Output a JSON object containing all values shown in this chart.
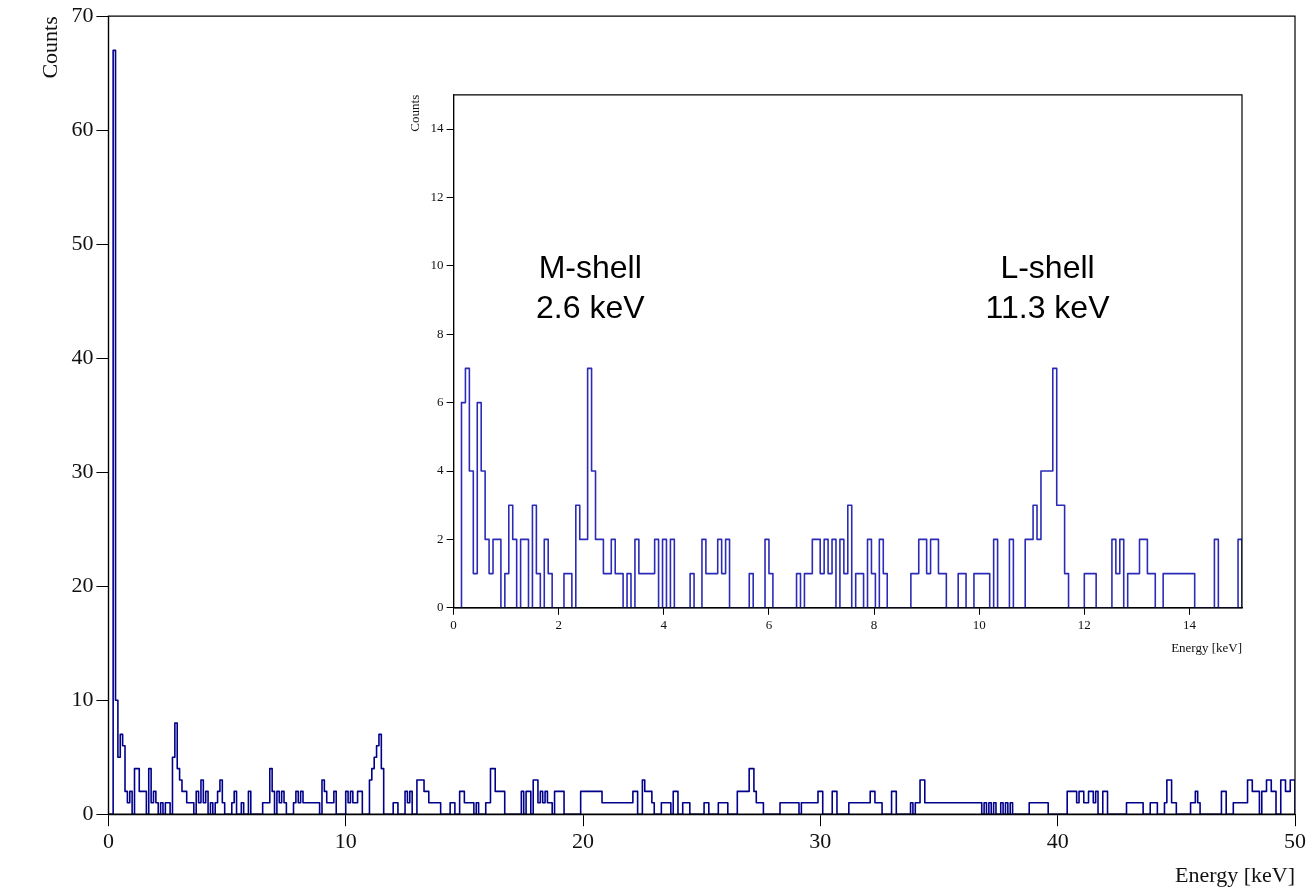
{
  "chart_data": [
    {
      "type": "histogram",
      "xlabel": "Energy [keV]",
      "ylabel": "Counts",
      "color": "#00008b",
      "xlim": [
        0,
        50
      ],
      "ylim": [
        0,
        70
      ],
      "xticks": [
        0,
        10,
        20,
        30,
        40,
        50
      ],
      "yticks": [
        0,
        10,
        20,
        30,
        40,
        50,
        60,
        70
      ],
      "bins": [
        0,
        0.1,
        0.2,
        0.3,
        0.4,
        0.5,
        0.6,
        0.7,
        0.8,
        0.9,
        1,
        1.1,
        1.2,
        1.3,
        1.4,
        1.5,
        1.6,
        1.7,
        1.8,
        1.9,
        2,
        2.1,
        2.2,
        2.3,
        2.4,
        2.5,
        2.6,
        2.7,
        2.8,
        2.9,
        3,
        3.1,
        3.2,
        3.3,
        3.4,
        3.5,
        3.6,
        3.7,
        3.8,
        3.9,
        4,
        4.1,
        4.2,
        4.3,
        4.4,
        4.5,
        4.6,
        4.7,
        4.8,
        4.9,
        5,
        5.1,
        5.2,
        5.3,
        5.4,
        5.5,
        5.6,
        5.7,
        5.8,
        5.9,
        6,
        6.1,
        6.2,
        6.3,
        6.4,
        6.5,
        6.6,
        6.7,
        6.8,
        6.9,
        7,
        7.1,
        7.2,
        7.3,
        7.4,
        7.5,
        7.6,
        7.7,
        7.8,
        7.9,
        8,
        8.1,
        8.2,
        8.3,
        8.4,
        8.5,
        8.6,
        8.7,
        8.8,
        8.9,
        9,
        9.1,
        9.2,
        9.3,
        9.4,
        9.5,
        9.6,
        9.7,
        9.8,
        9.9,
        10,
        10.1,
        10.2,
        10.3,
        10.4,
        10.5,
        10.6,
        10.7,
        10.8,
        10.9,
        11,
        11.1,
        11.2,
        11.3,
        11.4,
        11.5,
        11.6,
        11.7,
        11.8,
        11.9,
        12,
        12.1,
        12.2,
        12.3,
        12.4,
        12.5,
        12.6,
        12.7,
        12.8,
        12.9,
        13,
        13.1,
        13.2,
        13.3,
        13.4,
        13.5,
        13.6,
        13.7,
        13.8,
        13.9,
        14,
        14.1,
        14.2,
        14.3,
        14.4,
        14.5,
        14.6,
        14.7,
        14.8,
        14.9,
        15,
        15.1,
        15.2,
        15.3,
        15.4,
        15.5,
        15.6,
        15.7,
        15.8,
        15.9,
        16,
        16.1,
        16.2,
        16.3,
        16.4,
        16.5,
        16.6,
        16.7,
        16.8,
        16.9,
        17,
        17.1,
        17.2,
        17.3,
        17.4,
        17.5,
        17.6,
        17.7,
        17.8,
        17.9,
        18,
        18.1,
        18.2,
        18.3,
        18.4,
        18.5,
        18.6,
        18.7,
        18.8,
        18.9,
        19,
        19.1,
        19.2,
        19.3,
        19.4,
        19.5,
        19.6,
        19.7,
        19.8,
        19.9,
        20,
        20.1,
        20.2,
        20.3,
        20.4,
        20.5,
        20.6,
        20.7,
        20.8,
        20.9,
        21,
        21.1,
        21.2,
        21.3,
        21.4,
        21.5,
        21.6,
        21.7,
        21.8,
        21.9,
        22,
        22.1,
        22.2,
        22.3,
        22.4,
        22.5,
        22.6,
        22.7,
        22.8,
        22.9,
        23,
        23.1,
        23.2,
        23.3,
        23.4,
        23.5,
        23.6,
        23.7,
        23.8,
        23.9,
        24,
        24.1,
        24.2,
        24.3,
        24.4,
        24.5,
        24.6,
        24.7,
        24.8,
        24.9,
        25,
        25.1,
        25.2,
        25.3,
        25.4,
        25.5,
        25.6,
        25.7,
        25.8,
        25.9,
        26,
        26.1,
        26.2,
        26.3,
        26.4,
        26.5,
        26.6,
        26.7,
        26.8,
        26.9,
        27,
        27.1,
        27.2,
        27.3,
        27.4,
        27.5,
        27.6,
        27.7,
        27.8,
        27.9,
        28,
        28.1,
        28.2,
        28.3,
        28.4,
        28.5,
        28.6,
        28.7,
        28.8,
        28.9,
        29,
        29.1,
        29.2,
        29.3,
        29.4,
        29.5,
        29.6,
        29.7,
        29.8,
        29.9,
        30,
        30.1,
        30.2,
        30.3,
        30.4,
        30.5,
        30.6,
        30.7,
        30.8,
        30.9,
        31,
        31.1,
        31.2,
        31.3,
        31.4,
        31.5,
        31.6,
        31.7,
        31.8,
        31.9,
        32,
        32.1,
        32.2,
        32.3,
        32.4,
        32.5,
        32.6,
        32.7,
        32.8,
        32.9,
        33,
        33.1,
        33.2,
        33.3,
        33.4,
        33.5,
        33.6,
        33.7,
        33.8,
        33.9,
        34,
        34.1,
        34.2,
        34.3,
        34.4,
        34.5,
        34.6,
        34.7,
        34.8,
        34.9,
        35,
        35.1,
        35.2,
        35.3,
        35.4,
        35.5,
        35.6,
        35.7,
        35.8,
        35.9,
        36,
        36.1,
        36.2,
        36.3,
        36.4,
        36.5,
        36.6,
        36.7,
        36.8,
        36.9,
        37,
        37.1,
        37.2,
        37.3,
        37.4,
        37.5,
        37.6,
        37.7,
        37.8,
        37.9,
        38,
        38.1,
        38.2,
        38.3,
        38.4,
        38.5,
        38.6,
        38.7,
        38.8,
        38.9,
        39,
        39.1,
        39.2,
        39.3,
        39.4,
        39.5,
        39.6,
        39.7,
        39.8,
        39.9,
        40,
        40.1,
        40.2,
        40.3,
        40.4,
        40.5,
        40.6,
        40.7,
        40.8,
        40.9,
        41,
        41.1,
        41.2,
        41.3,
        41.4,
        41.5,
        41.6,
        41.7,
        41.8,
        41.9,
        42,
        42.1,
        42.2,
        42.3,
        42.4,
        42.5,
        42.6,
        42.7,
        42.8,
        42.9,
        43,
        43.1,
        43.2,
        43.3,
        43.4,
        43.5,
        43.6,
        43.7,
        43.8,
        43.9,
        44,
        44.1,
        44.2,
        44.3,
        44.4,
        44.5,
        44.6,
        44.7,
        44.8,
        44.9,
        45,
        45.1,
        45.2,
        45.3,
        45.4,
        45.5,
        45.6,
        45.7,
        45.8,
        45.9,
        46,
        46.1,
        46.2,
        46.3,
        46.4,
        46.5,
        46.6,
        46.7,
        46.8,
        46.9,
        47,
        47.1,
        47.2,
        47.3,
        47.4,
        47.5,
        47.6,
        47.7,
        47.8,
        47.9,
        48,
        48.1,
        48.2,
        48.3,
        48.4,
        48.5,
        48.6,
        48.7,
        48.8,
        48.9,
        49,
        49.1,
        49.2,
        49.3,
        49.4,
        49.5,
        49.6,
        49.7,
        49.8,
        49.9,
        50
      ],
      "values": [
        0,
        0,
        67,
        10,
        5,
        7,
        6,
        2,
        1,
        2,
        0,
        4,
        4,
        2,
        2,
        2,
        0,
        4,
        1,
        2,
        1,
        0,
        1,
        0,
        1,
        1,
        0,
        5,
        8,
        4,
        3,
        2,
        2,
        1,
        1,
        1,
        0,
        2,
        1,
        3,
        1,
        2,
        0,
        1,
        0,
        1,
        2,
        3,
        1,
        0,
        0,
        0,
        1,
        2,
        0,
        0,
        1,
        0,
        0,
        2,
        0,
        0,
        0,
        0,
        0,
        1,
        1,
        1,
        4,
        2,
        0,
        2,
        1,
        2,
        1,
        0,
        0,
        0,
        1,
        2,
        1,
        2,
        1,
        1,
        1,
        1,
        1,
        1,
        1,
        0,
        3,
        2,
        1,
        1,
        1,
        2,
        0,
        0,
        0,
        0,
        2,
        1,
        2,
        1,
        1,
        2,
        2,
        0,
        0,
        0,
        3,
        4,
        5,
        6,
        7,
        4,
        0,
        0,
        0,
        0,
        1,
        1,
        0,
        0,
        0,
        2,
        1,
        2,
        0,
        0,
        3,
        3,
        3,
        2,
        2,
        1,
        1,
        1,
        1,
        1,
        0,
        0,
        0,
        0,
        1,
        1,
        0,
        0,
        2,
        2,
        1,
        1,
        1,
        1,
        0,
        1,
        0,
        0,
        0,
        1,
        1,
        4,
        4,
        2,
        2,
        2,
        2,
        0,
        0,
        0,
        0,
        0,
        0,
        0,
        2,
        0,
        2,
        2,
        0,
        3,
        3,
        1,
        2,
        1,
        2,
        1,
        1,
        0,
        2,
        2,
        2,
        2,
        0,
        0,
        0,
        0,
        0,
        0,
        0,
        2,
        2,
        2,
        2,
        2,
        2,
        2,
        2,
        2,
        1,
        1,
        1,
        1,
        1,
        1,
        1,
        1,
        1,
        1,
        1,
        1,
        1,
        2,
        2,
        0,
        0,
        3,
        2,
        2,
        2,
        1,
        0,
        0,
        0,
        1,
        1,
        1,
        1,
        0,
        2,
        2,
        0,
        0,
        1,
        1,
        1,
        0,
        0,
        0,
        0,
        0,
        0,
        1,
        1,
        0,
        0,
        0,
        0,
        1,
        1,
        1,
        1,
        0,
        0,
        0,
        0,
        2,
        2,
        2,
        2,
        2,
        4,
        4,
        2,
        1,
        1,
        1,
        0,
        0,
        0,
        0,
        0,
        0,
        0,
        1,
        1,
        1,
        1,
        1,
        1,
        1,
        1,
        0,
        1,
        1,
        1,
        1,
        1,
        1,
        1,
        2,
        2,
        0,
        0,
        0,
        0,
        2,
        2,
        0,
        0,
        0,
        0,
        0,
        1,
        1,
        1,
        1,
        1,
        1,
        1,
        1,
        1,
        2,
        2,
        1,
        1,
        1,
        0,
        0,
        0,
        0,
        2,
        2,
        0,
        0,
        0,
        0,
        0,
        0,
        1,
        0,
        1,
        1,
        3,
        3,
        1,
        1,
        1,
        1,
        1,
        1,
        1,
        1,
        1,
        1,
        1,
        1,
        1,
        1,
        1,
        1,
        1,
        1,
        1,
        1,
        1,
        1,
        1,
        1,
        0,
        1,
        0,
        1,
        0,
        1,
        0,
        0,
        1,
        0,
        1,
        0,
        1,
        0,
        0,
        0,
        0,
        0,
        0,
        0,
        1,
        1,
        1,
        1,
        1,
        1,
        1,
        1,
        0,
        0,
        0,
        0,
        0,
        0,
        0,
        0,
        2,
        2,
        2,
        2,
        1,
        2,
        2,
        1,
        1,
        2,
        2,
        1,
        2,
        0,
        0,
        2,
        2,
        0,
        0,
        0,
        0,
        0,
        0,
        0,
        0,
        1,
        1,
        1,
        1,
        1,
        1,
        1,
        0,
        0,
        0,
        1,
        1,
        1,
        0,
        0,
        0,
        1,
        3,
        3,
        1,
        1,
        0,
        0,
        0,
        0,
        0,
        0,
        1,
        1,
        2,
        1,
        0,
        0,
        0,
        0,
        0,
        0,
        0,
        0,
        0,
        2,
        2,
        0,
        0,
        0,
        1,
        1,
        1,
        1,
        1,
        1,
        3,
        3,
        2,
        2,
        2,
        0,
        2,
        2,
        3,
        3,
        2,
        2,
        0,
        0,
        3,
        3,
        2,
        2,
        3,
        3
      ]
    },
    {
      "type": "histogram",
      "xlabel": "Energy [keV]",
      "ylabel": "Counts",
      "color": "#2b2bb8",
      "xlim": [
        0,
        15
      ],
      "ylim": [
        0,
        15
      ],
      "xticks": [
        0,
        2,
        4,
        6,
        8,
        10,
        12,
        14
      ],
      "yticks": [
        0,
        2,
        4,
        6,
        8,
        10,
        12,
        14
      ],
      "annotations": [
        {
          "text": "M-shell\n2.6 keV",
          "x": 2.6,
          "y": 7
        },
        {
          "text": "L-shell\n11.3 keV",
          "x": 11.3,
          "y": 7
        }
      ],
      "bins": [
        0.15,
        0.225,
        0.3,
        0.375,
        0.45,
        0.525,
        0.6,
        0.675,
        0.75,
        0.825,
        0.9,
        0.975,
        1.05,
        1.125,
        1.2,
        1.275,
        1.35,
        1.425,
        1.5,
        1.575,
        1.65,
        1.725,
        1.8,
        1.875,
        1.95,
        2.025,
        2.1,
        2.175,
        2.25,
        2.325,
        2.4,
        2.475,
        2.55,
        2.625,
        2.7,
        2.775,
        2.85,
        2.925,
        3,
        3.075,
        3.15,
        3.225,
        3.3,
        3.375,
        3.45,
        3.525,
        3.6,
        3.675,
        3.75,
        3.825,
        3.9,
        3.975,
        4.05,
        4.125,
        4.2,
        4.275,
        4.35,
        4.425,
        4.5,
        4.575,
        4.65,
        4.725,
        4.8,
        4.875,
        4.95,
        5.025,
        5.1,
        5.175,
        5.25,
        5.325,
        5.4,
        5.475,
        5.55,
        5.625,
        5.7,
        5.775,
        5.85,
        5.925,
        6,
        6.075,
        6.15,
        6.225,
        6.3,
        6.375,
        6.45,
        6.525,
        6.6,
        6.675,
        6.75,
        6.825,
        6.9,
        6.975,
        7.05,
        7.125,
        7.2,
        7.275,
        7.35,
        7.425,
        7.5,
        7.575,
        7.65,
        7.725,
        7.8,
        7.875,
        7.95,
        8.025,
        8.1,
        8.175,
        8.25,
        8.325,
        8.4,
        8.475,
        8.55,
        8.625,
        8.7,
        8.775,
        8.85,
        8.925,
        9,
        9.075,
        9.15,
        9.225,
        9.3,
        9.375,
        9.45,
        9.525,
        9.6,
        9.675,
        9.75,
        9.825,
        9.9,
        9.975,
        10.05,
        10.125,
        10.2,
        10.275,
        10.35,
        10.425,
        10.5,
        10.575,
        10.65,
        10.725,
        10.8,
        10.875,
        10.95,
        11.025,
        11.1,
        11.175,
        11.25,
        11.325,
        11.4,
        11.475,
        11.55,
        11.625,
        11.7,
        11.775,
        11.85,
        11.925,
        12,
        12.075,
        12.15,
        12.225,
        12.3,
        12.375,
        12.45,
        12.525,
        12.6,
        12.675,
        12.75,
        12.825,
        12.9,
        12.975,
        13.05,
        13.125,
        13.2,
        13.275,
        13.35,
        13.425,
        13.5,
        13.575,
        13.65,
        13.725,
        13.8,
        13.875,
        13.95,
        14.025,
        14.1,
        14.175,
        14.25,
        14.325,
        14.4,
        14.475,
        14.55,
        14.625,
        14.7,
        14.775,
        14.85,
        14.925,
        15
      ],
      "values": [
        6,
        7,
        4,
        1,
        6,
        4,
        2,
        1,
        2,
        2,
        0,
        1,
        3,
        2,
        0,
        2,
        2,
        0,
        3,
        1,
        0,
        2,
        1,
        0,
        0,
        0,
        1,
        1,
        0,
        3,
        2,
        2,
        7,
        4,
        2,
        2,
        1,
        1,
        2,
        1,
        1,
        0,
        1,
        0,
        2,
        1,
        1,
        1,
        1,
        2,
        0,
        2,
        0,
        2,
        0,
        0,
        0,
        0,
        1,
        0,
        0,
        2,
        1,
        1,
        1,
        2,
        1,
        2,
        0,
        0,
        0,
        0,
        0,
        1,
        0,
        0,
        0,
        2,
        1,
        0,
        0,
        0,
        0,
        0,
        0,
        1,
        0,
        1,
        1,
        2,
        2,
        1,
        2,
        1,
        2,
        0,
        2,
        1,
        3,
        0,
        1,
        1,
        0,
        2,
        1,
        0,
        2,
        1,
        0,
        0,
        0,
        0,
        0,
        0,
        1,
        1,
        2,
        2,
        1,
        2,
        2,
        1,
        1,
        0,
        0,
        0,
        1,
        1,
        0,
        0,
        1,
        1,
        1,
        1,
        0,
        2,
        0,
        0,
        0,
        2,
        0,
        0,
        0,
        2,
        2,
        3,
        2,
        4,
        4,
        4,
        7,
        3,
        3,
        1,
        0,
        0,
        0,
        0,
        1,
        1,
        1,
        0,
        0,
        0,
        0,
        2,
        1,
        2,
        0,
        1,
        1,
        1,
        2,
        2,
        1,
        1,
        0,
        0,
        1,
        1,
        1,
        1,
        1,
        1,
        1,
        1,
        0,
        0,
        0,
        0,
        0,
        2,
        0,
        0,
        0,
        0,
        0,
        2
      ]
    }
  ]
}
